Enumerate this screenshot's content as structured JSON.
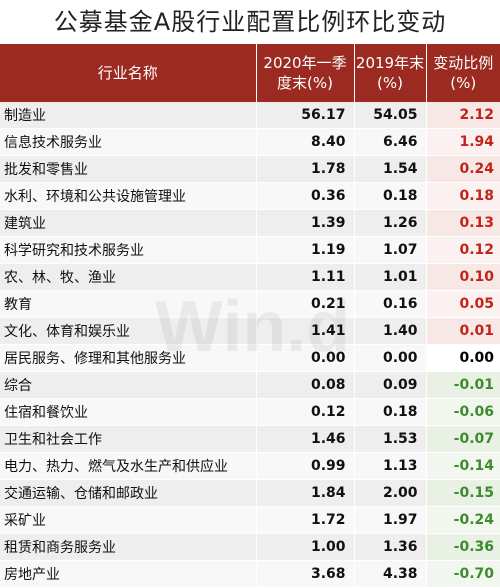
{
  "title": "公募基金A股行业配置比例环比变动",
  "header": {
    "name": "行业名称",
    "q1_2020": "2020年一季度末(%)",
    "y2019": "2019年末(%)",
    "change": "变动比例(%)"
  },
  "colors": {
    "header_bg": "#9b2a21",
    "positive": "#c2241a",
    "negative": "#3d8b2e"
  },
  "rows": [
    {
      "name": "制造业",
      "q1_2020": "56.17",
      "y2019": "54.05",
      "change": "2.12"
    },
    {
      "name": "信息技术服务业",
      "q1_2020": "8.40",
      "y2019": "6.46",
      "change": "1.94"
    },
    {
      "name": "批发和零售业",
      "q1_2020": "1.78",
      "y2019": "1.54",
      "change": "0.24"
    },
    {
      "name": "水利、环境和公共设施管理业",
      "q1_2020": "0.36",
      "y2019": "0.18",
      "change": "0.18"
    },
    {
      "name": "建筑业",
      "q1_2020": "1.39",
      "y2019": "1.26",
      "change": "0.13"
    },
    {
      "name": "科学研究和技术服务业",
      "q1_2020": "1.19",
      "y2019": "1.07",
      "change": "0.12"
    },
    {
      "name": "农、林、牧、渔业",
      "q1_2020": "1.11",
      "y2019": "1.01",
      "change": "0.10"
    },
    {
      "name": "教育",
      "q1_2020": "0.21",
      "y2019": "0.16",
      "change": "0.05"
    },
    {
      "name": "文化、体育和娱乐业",
      "q1_2020": "1.41",
      "y2019": "1.40",
      "change": "0.01"
    },
    {
      "name": "居民服务、修理和其他服务业",
      "q1_2020": "0.00",
      "y2019": "0.00",
      "change": "0.00"
    },
    {
      "name": "综合",
      "q1_2020": "0.08",
      "y2019": "0.09",
      "change": "-0.01"
    },
    {
      "name": "住宿和餐饮业",
      "q1_2020": "0.12",
      "y2019": "0.18",
      "change": "-0.06"
    },
    {
      "name": "卫生和社会工作",
      "q1_2020": "1.46",
      "y2019": "1.53",
      "change": "-0.07"
    },
    {
      "name": "电力、热力、燃气及水生产和供应业",
      "q1_2020": "0.99",
      "y2019": "1.13",
      "change": "-0.14"
    },
    {
      "name": "交通运输、仓储和邮政业",
      "q1_2020": "1.84",
      "y2019": "2.00",
      "change": "-0.15"
    },
    {
      "name": "采矿业",
      "q1_2020": "1.72",
      "y2019": "1.97",
      "change": "-0.24"
    },
    {
      "name": "租赁和商务服务业",
      "q1_2020": "1.00",
      "y2019": "1.36",
      "change": "-0.36"
    },
    {
      "name": "房地产业",
      "q1_2020": "3.68",
      "y2019": "4.38",
      "change": "-0.70"
    }
  ]
}
